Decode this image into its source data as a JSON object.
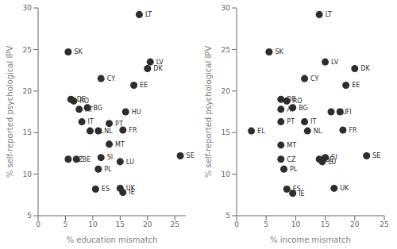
{
  "chart_data": [
    {
      "type": "scatter",
      "xlabel": "% education mismatch",
      "ylabel": "% self-reported psychological IPV",
      "xlim": [
        0,
        27
      ],
      "ylim": [
        5,
        30
      ],
      "xticks": [
        0,
        5,
        10,
        15,
        20,
        25
      ],
      "yticks": [
        5,
        10,
        15,
        20,
        25,
        30
      ],
      "color": "#2d2d2d",
      "grid": false,
      "labels": [
        "LT",
        "SK",
        "LV",
        "DK",
        "CY",
        "EE",
        "DE",
        "RO",
        "AT",
        "BG",
        "HU",
        "IT",
        "PT",
        "EL",
        "NL",
        "FR",
        "MT",
        "CZ",
        "BE",
        "SI",
        "LU",
        "SE",
        "PL",
        "ES",
        "UK",
        "IE"
      ],
      "x": [
        18.5,
        5.5,
        20.5,
        20.0,
        11.5,
        17.5,
        6.0,
        6.5,
        7.5,
        9.0,
        16.0,
        8.0,
        13.0,
        9.5,
        11.0,
        15.5,
        13.0,
        5.5,
        7.0,
        11.5,
        15.0,
        26.0,
        11.0,
        10.5,
        15.0,
        15.5
      ],
      "values": [
        29.2,
        24.7,
        23.5,
        22.7,
        21.5,
        20.7,
        19.0,
        18.8,
        17.8,
        18.0,
        17.5,
        16.3,
        16.1,
        15.2,
        15.2,
        15.3,
        13.6,
        11.8,
        11.8,
        12.0,
        11.5,
        12.2,
        10.6,
        8.2,
        8.3,
        7.8
      ]
    },
    {
      "type": "scatter",
      "xlabel": "% income mismatch",
      "ylabel": "% self-reported psychological IPV",
      "xlim": [
        0,
        25
      ],
      "ylim": [
        5,
        30
      ],
      "xticks": [
        0,
        5,
        10,
        15,
        20,
        25
      ],
      "yticks": [
        5,
        10,
        15,
        20,
        25,
        30
      ],
      "color": "#2d2d2d",
      "grid": false,
      "labels": [
        "LT",
        "SK",
        "LV",
        "DK",
        "CY",
        "EE",
        "DE",
        "RO",
        "AT",
        "BG",
        "HU",
        "FI",
        "PT",
        "IT",
        "EL",
        "NL",
        "FR",
        "MT",
        "CZ",
        "BE",
        "SI",
        "LU",
        "SE",
        "PL",
        "ES",
        "UK",
        "IE"
      ],
      "x": [
        14.0,
        5.5,
        15.0,
        20.0,
        11.5,
        18.5,
        7.5,
        8.5,
        7.5,
        9.5,
        16.0,
        17.5,
        7.5,
        11.5,
        2.5,
        12.0,
        18.0,
        7.5,
        7.5,
        14.0,
        15.0,
        14.5,
        22.0,
        8.0,
        8.5,
        16.5,
        9.5
      ],
      "values": [
        29.2,
        24.7,
        23.5,
        22.7,
        21.5,
        20.7,
        19.0,
        18.8,
        17.8,
        18.0,
        17.5,
        17.5,
        16.3,
        16.3,
        15.2,
        15.2,
        15.3,
        13.5,
        11.8,
        11.8,
        12.0,
        11.5,
        12.2,
        10.6,
        8.2,
        8.3,
        7.7
      ]
    }
  ]
}
